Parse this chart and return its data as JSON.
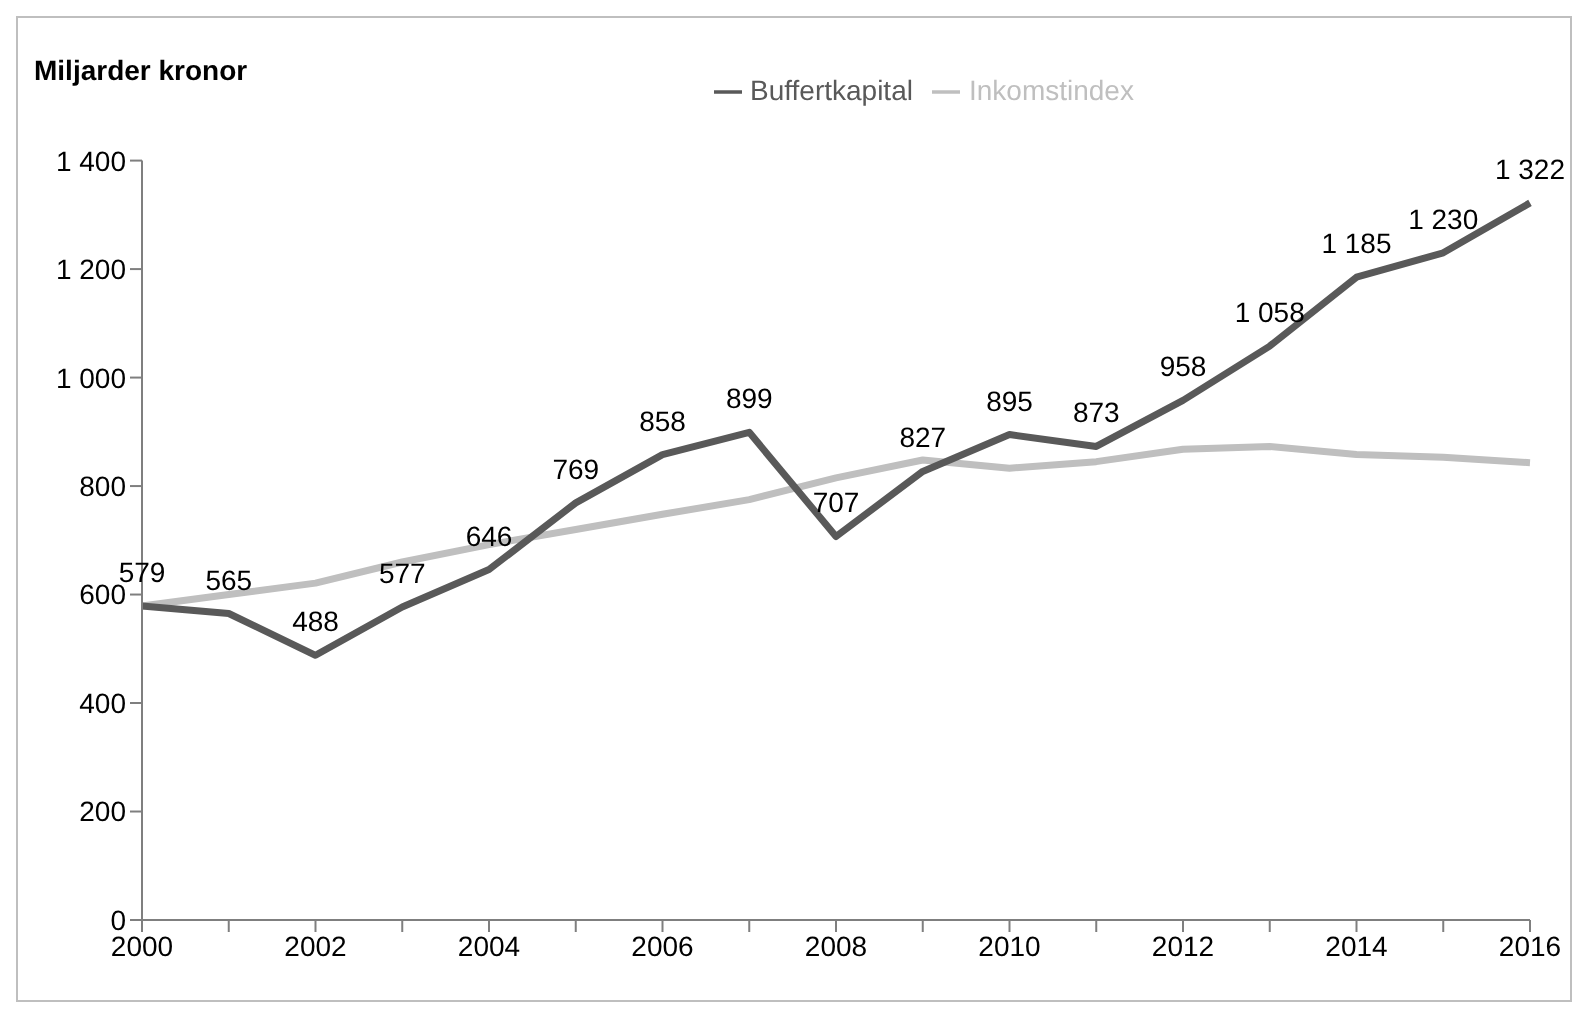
{
  "chart_data": {
    "type": "line",
    "ylabel": "Miljarder kronor",
    "categories": [
      "2000",
      null,
      "2002",
      null,
      "2004",
      null,
      "2006",
      null,
      "2008",
      null,
      "2010",
      null,
      "2012",
      null,
      "2014",
      null,
      "2016"
    ],
    "series": [
      {
        "name": "Inkomstindex",
        "color": "#bfbfbf",
        "values": [
          579,
          600,
          621,
          660,
          692,
          720,
          748,
          775,
          815,
          848,
          833,
          845,
          868,
          873,
          858,
          853,
          843
        ]
      },
      {
        "name": "Buffertkapital",
        "color": "#595959",
        "values": [
          579,
          565,
          488,
          577,
          646,
          769,
          858,
          899,
          707,
          827,
          895,
          873,
          958,
          1058,
          1185,
          1230,
          1322
        ],
        "value_labels": [
          "579",
          "565",
          "488",
          "577",
          "646",
          "769",
          "858",
          "899",
          "707",
          "827",
          "895",
          "873",
          "958",
          "1 058",
          "1 185",
          "1 230",
          "1 322"
        ]
      }
    ],
    "ylim": [
      0,
      1400
    ],
    "yticks": [
      0,
      200,
      400,
      600,
      800,
      {
        "value": 1000,
        "label": "1 000"
      },
      {
        "value": 1200,
        "label": "1 200"
      },
      {
        "value": 1400,
        "label": "1 400"
      }
    ],
    "grid": false,
    "legend": "top",
    "marker": "none",
    "line_style": "solid"
  }
}
